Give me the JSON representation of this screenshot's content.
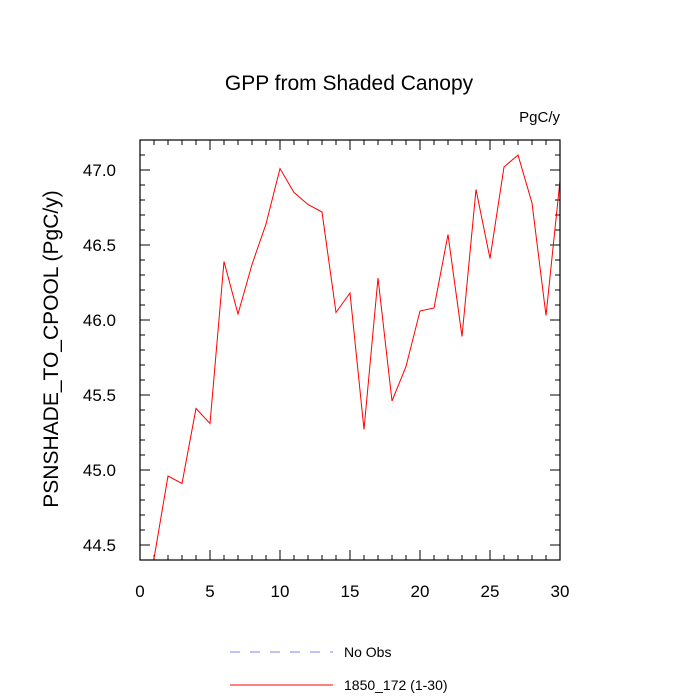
{
  "chart_data": {
    "type": "line",
    "title": "GPP from Shaded Canopy",
    "units_label": "PgC/y",
    "ylabel": "PSNSHADE_TO_CPOOL  (PgC/y)",
    "xlabel": "",
    "xlim": [
      0,
      30
    ],
    "ylim": [
      44.4,
      47.2
    ],
    "xticks": [
      0,
      5,
      10,
      15,
      20,
      25,
      30
    ],
    "yticks": [
      44.5,
      45.0,
      45.5,
      46.0,
      46.5,
      47.0
    ],
    "ytick_labels": [
      "44.5",
      "45.0",
      "45.5",
      "46.0",
      "46.5",
      "47.0"
    ],
    "series": [
      {
        "name": "1850_172 (1-30)",
        "color": "#ff0000",
        "x": [
          1,
          2,
          3,
          4,
          5,
          6,
          7,
          8,
          9,
          10,
          11,
          12,
          13,
          14,
          15,
          16,
          17,
          18,
          19,
          20,
          21,
          22,
          23,
          24,
          25,
          26,
          27,
          28,
          29,
          30
        ],
        "values": [
          44.41,
          44.96,
          44.91,
          45.41,
          45.31,
          46.39,
          46.04,
          46.37,
          46.64,
          47.01,
          46.85,
          46.77,
          46.72,
          46.05,
          46.18,
          45.27,
          46.28,
          45.46,
          45.69,
          46.06,
          46.08,
          46.57,
          45.89,
          46.87,
          46.41,
          47.02,
          47.1,
          46.78,
          46.03,
          46.93
        ]
      },
      {
        "name": "No Obs",
        "color": "#8080ff",
        "x": [],
        "values": []
      }
    ],
    "legend": [
      {
        "label": "No Obs",
        "color": "#8080ff",
        "style": "dashed"
      },
      {
        "label": "1850_172 (1-30)",
        "color": "#ff0000",
        "style": "solid"
      }
    ]
  }
}
